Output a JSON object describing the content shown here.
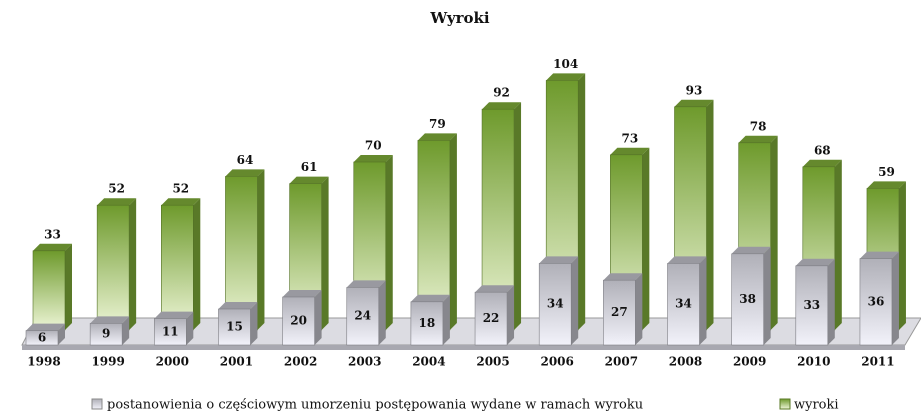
{
  "chart_data": {
    "type": "bar3d",
    "title": "Wyroki",
    "categories": [
      "1998",
      "1999",
      "2000",
      "2001",
      "2002",
      "2003",
      "2004",
      "2005",
      "2006",
      "2007",
      "2008",
      "2009",
      "2010",
      "2011"
    ],
    "series": [
      {
        "name": "postanowienia o częściowym umorzeniu postępowania wydane w ramach wyroku",
        "color": "#b4b4bc",
        "values": [
          6,
          9,
          11,
          15,
          20,
          24,
          18,
          22,
          34,
          27,
          34,
          38,
          33,
          36
        ]
      },
      {
        "name": "wyroki",
        "color": "#77a135",
        "values": [
          33,
          52,
          52,
          64,
          61,
          70,
          79,
          92,
          104,
          73,
          93,
          78,
          68,
          59
        ]
      }
    ]
  }
}
